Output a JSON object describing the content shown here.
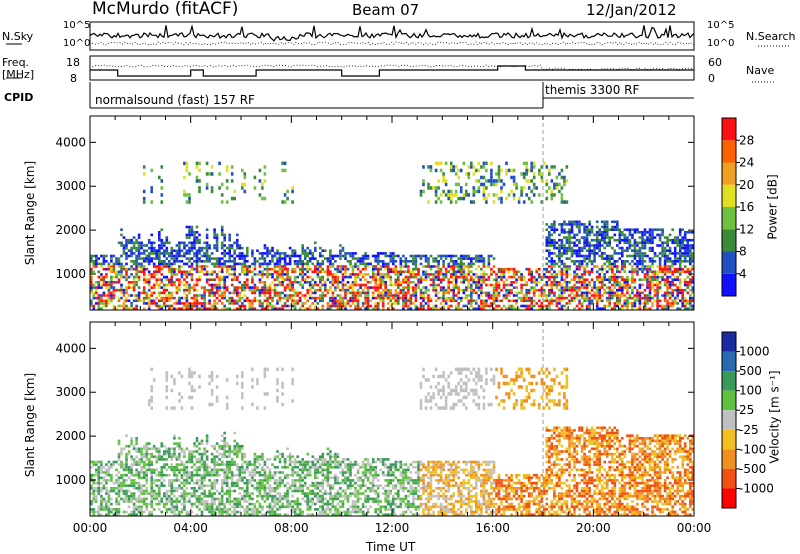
{
  "header": {
    "station": "McMurdo (fitACF)",
    "beam": "Beam 07",
    "date": "12/Jan/2012"
  },
  "top_panels": {
    "nsky_label": "N.Sky",
    "nsky_ticks": [
      "10^5",
      "10^0"
    ],
    "nsearch_label": "N.Search",
    "nsearch_ticks": [
      "10^5",
      "10^0"
    ],
    "freq_label_1": "Freq.",
    "freq_label_2": "[MHz]",
    "freq_ticks": [
      "18",
      "8"
    ],
    "nave_label": "Nave",
    "nave_ticks": [
      "60",
      "0"
    ],
    "cpid_label": "CPID",
    "cpid_segments": [
      "normalsound (fast) 157 RF",
      "themis 3300 RF"
    ]
  },
  "chart_data": [
    {
      "type": "heatmap",
      "title": "",
      "xlabel": "Time UT",
      "ylabel": "Slant Range [km]",
      "x_ticks": [
        "00:00",
        "04:00",
        "08:00",
        "12:00",
        "16:00",
        "20:00",
        "00:00"
      ],
      "xlim_hours": [
        0,
        24
      ],
      "y_ticks": [
        1000,
        2000,
        3000,
        4000
      ],
      "ylim": [
        180,
        4600
      ],
      "colorbar_label": "Power [dB]",
      "colorbar_ticks": [
        4,
        8,
        12,
        16,
        20,
        24,
        28
      ],
      "colorbar_range": [
        0,
        32
      ],
      "colors": [
        "#1010ff",
        "#2050c0",
        "#3a8a3a",
        "#70c040",
        "#e0e020",
        "#f0a020",
        "#ff6000",
        "#ff1010"
      ]
    },
    {
      "type": "heatmap",
      "title": "",
      "xlabel": "Time UT",
      "ylabel": "Slant Range [km]",
      "x_ticks": [
        "00:00",
        "04:00",
        "08:00",
        "12:00",
        "16:00",
        "20:00",
        "00:00"
      ],
      "xlim_hours": [
        0,
        24
      ],
      "y_ticks": [
        1000,
        2000,
        3000,
        4000
      ],
      "ylim": [
        180,
        4600
      ],
      "colorbar_label": "Velocity [m s⁻¹]",
      "colorbar_ticks": [
        "1000",
        "500",
        "100",
        "25",
        "-25",
        "-100",
        "-500",
        "-1000"
      ],
      "colors": [
        "#1a2aa0",
        "#2a6ab0",
        "#3a9a5a",
        "#60c040",
        "#c0c0c0",
        "#f0c020",
        "#f09020",
        "#f05010",
        "#ff0000"
      ]
    }
  ]
}
